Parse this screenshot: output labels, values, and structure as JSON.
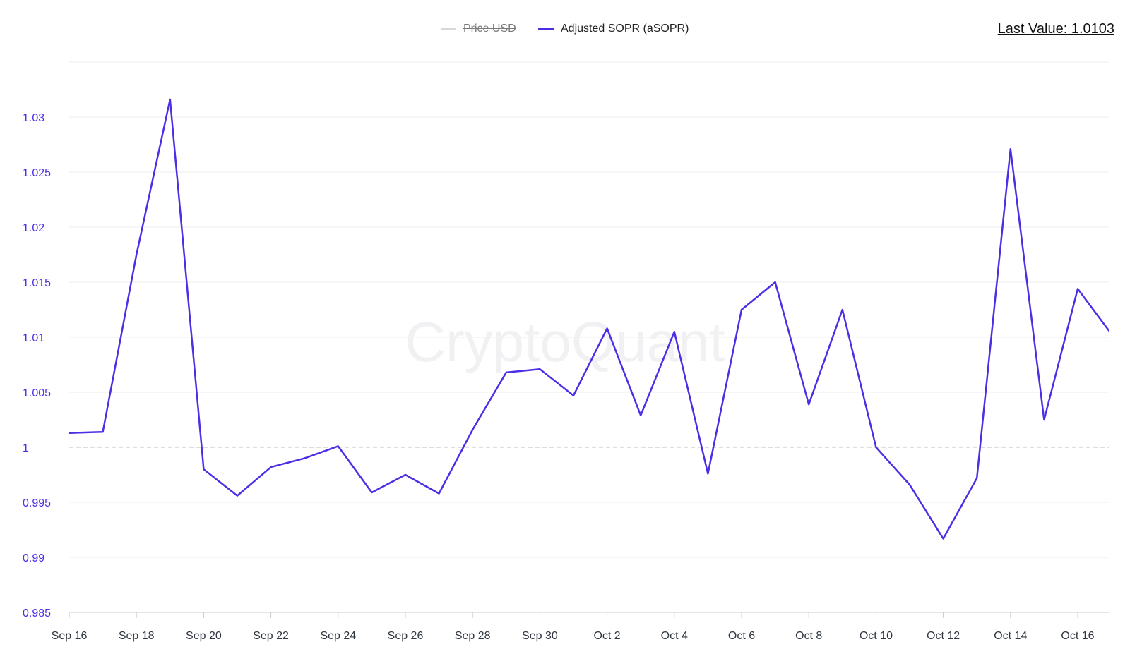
{
  "legend": {
    "items": [
      {
        "label": "Price USD",
        "color": "#d8d8d8",
        "hidden": true
      },
      {
        "label": "Adjusted SOPR (aSOPR)",
        "color": "#4b2ee6",
        "hidden": false
      }
    ]
  },
  "last_value": {
    "label": "Last Value:",
    "value": "1.0103"
  },
  "watermark": "CryptoQuant",
  "colors": {
    "series": "#4b2ee6",
    "y_tick_text": "#4b2ee6",
    "x_tick_text": "#2f3640",
    "grid": "#eeeeee",
    "reference_line": "#bdbdbd"
  },
  "chart_data": {
    "type": "line",
    "title": "",
    "xlabel": "",
    "ylabel": "",
    "ylim": [
      0.985,
      1.035
    ],
    "xlim": [
      "2023-09-16",
      "2023-10-16"
    ],
    "grid": true,
    "reference_line": 1,
    "x_ticks": [
      "Sep 16",
      "Sep 18",
      "Sep 20",
      "Sep 22",
      "Sep 24",
      "Sep 26",
      "Sep 28",
      "Sep 30",
      "Oct 2",
      "Oct 4",
      "Oct 6",
      "Oct 8",
      "Oct 10",
      "Oct 12",
      "Oct 14",
      "Oct 16"
    ],
    "y_ticks": [
      "0.985",
      "0.99",
      "0.995",
      "1",
      "1.005",
      "1.01",
      "1.015",
      "1.02",
      "1.025",
      "1.03"
    ],
    "series": [
      {
        "name": "Adjusted SOPR (aSOPR)",
        "x": [
          "2023-09-16",
          "2023-09-17",
          "2023-09-18",
          "2023-09-19",
          "2023-09-20",
          "2023-09-21",
          "2023-09-22",
          "2023-09-23",
          "2023-09-24",
          "2023-09-25",
          "2023-09-26",
          "2023-09-27",
          "2023-09-28",
          "2023-09-29",
          "2023-09-30",
          "2023-10-01",
          "2023-10-02",
          "2023-10-03",
          "2023-10-04",
          "2023-10-05",
          "2023-10-06",
          "2023-10-07",
          "2023-10-08",
          "2023-10-09",
          "2023-10-10",
          "2023-10-11",
          "2023-10-12",
          "2023-10-13",
          "2023-10-14",
          "2023-10-15",
          "2023-10-16",
          "2023-10-17"
        ],
        "values": [
          1.0013,
          1.0014,
          1.0175,
          1.0316,
          0.998,
          0.9956,
          0.9982,
          0.999,
          1.0001,
          0.9959,
          0.9975,
          0.9958,
          1.0016,
          1.0068,
          1.0071,
          1.0047,
          1.0108,
          1.0029,
          1.0105,
          0.9976,
          1.0125,
          1.015,
          1.0039,
          1.0125,
          1.0,
          0.9966,
          0.9917,
          0.9972,
          1.0271,
          1.0025,
          1.0144,
          1.0103
        ]
      }
    ]
  }
}
